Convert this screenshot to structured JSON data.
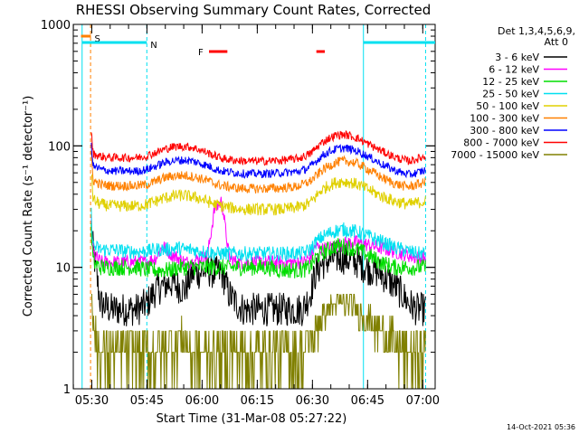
{
  "chart_data": {
    "type": "line",
    "title": "RHESSI Observing Summary Count Rates, Corrected",
    "xlabel": "Start Time (31-Mar-08 05:27:22)",
    "ylabel": "Corrected Count Rate (s⁻¹ detector⁻¹)",
    "ylim": [
      1,
      1000
    ],
    "yscale": "log",
    "xlim_minutes": [
      -2.4,
      96.0
    ],
    "x_tick_labels": [
      {
        "t": 2.63,
        "label": "05:30"
      },
      {
        "t": 17.63,
        "label": "05:45"
      },
      {
        "t": 32.63,
        "label": "06:00"
      },
      {
        "t": 47.63,
        "label": "06:15"
      },
      {
        "t": 62.63,
        "label": "06:30"
      },
      {
        "t": 77.63,
        "label": "06:45"
      },
      {
        "t": 92.63,
        "label": "07:00"
      }
    ],
    "y_tick_labels": [
      {
        "v": 1,
        "label": "1"
      },
      {
        "v": 10,
        "label": "10"
      },
      {
        "v": 100,
        "label": "100"
      },
      {
        "v": 1000,
        "label": "1000"
      }
    ],
    "legend": {
      "header_lines": [
        "Det 1,3,4,5,6,9,",
        "Att 0"
      ],
      "placement": "right"
    },
    "timestamp": "14-Oct-2021 05:36",
    "flags": [
      {
        "label": "S",
        "color": "#ff8000",
        "segments": [
          [
            -0.3,
            2.4
          ]
        ]
      },
      {
        "label": "N",
        "color": "#00e0f0",
        "segments": [
          [
            0.0,
            17.6
          ],
          [
            76.5,
            96.0
          ]
        ]
      },
      {
        "label": "F",
        "color": "#ff0000",
        "segments": [
          [
            34.5,
            39.5
          ],
          [
            63.7,
            66.0
          ]
        ]
      }
    ],
    "vlines": [
      {
        "t": 0.0,
        "color": "#00e0f0",
        "style": "solid"
      },
      {
        "t": 2.3,
        "color": "#ff8000",
        "style": "dashed"
      },
      {
        "t": 17.6,
        "color": "#00e0f0",
        "style": "dashed"
      },
      {
        "t": 76.5,
        "color": "#00e0f0",
        "style": "solid"
      },
      {
        "t": 93.4,
        "color": "#00e0f0",
        "style": "dashed"
      }
    ],
    "x": [
      2.5,
      3.0,
      5.0,
      8.0,
      12.0,
      15.0,
      17.6,
      20.0,
      22.0,
      24.0,
      26.0,
      28.0,
      30.0,
      32.0,
      34.0,
      36.0,
      38.0,
      40.0,
      42.0,
      44.0,
      46.0,
      50.0,
      54.0,
      58.0,
      60.0,
      62.0,
      63.5,
      65.0,
      67.0,
      69.0,
      71.0,
      73.0,
      75.0,
      77.0,
      79.0,
      81.0,
      83.0,
      85.0,
      87.0,
      89.0,
      91.0,
      93.4
    ],
    "series": [
      {
        "name": "3 - 6 keV",
        "color": "#000000",
        "values": [
          20,
          14,
          5,
          4.5,
          4.5,
          4.5,
          5,
          6.5,
          7,
          7.5,
          7,
          6.5,
          9,
          9,
          9.5,
          9,
          9,
          6,
          5,
          4.5,
          4.5,
          4.5,
          4.5,
          4.5,
          4.5,
          6,
          9,
          10.5,
          11.5,
          12,
          12,
          11.5,
          11,
          10,
          9.5,
          9,
          8,
          7,
          6,
          5,
          4.5,
          4.5
        ]
      },
      {
        "name": "6 - 12 keV",
        "color": "#ff00ff",
        "values": [
          25,
          13,
          11,
          11,
          11,
          11,
          11,
          12,
          15,
          13,
          12,
          11,
          11,
          12,
          12,
          30,
          35,
          12,
          11,
          11,
          11,
          11,
          11,
          11,
          11,
          12,
          15,
          14,
          14.5,
          15,
          15.5,
          16,
          16,
          15.5,
          15,
          14.5,
          14,
          13.5,
          13,
          12.5,
          12,
          12
        ]
      },
      {
        "name": "12 - 25 keV",
        "color": "#00dd00",
        "values": [
          20,
          11,
          10,
          10,
          10,
          10,
          9.5,
          9.5,
          9.5,
          9.5,
          10,
          10,
          10,
          10,
          10,
          10,
          10,
          10,
          10,
          10,
          10,
          10,
          9.5,
          9.5,
          9.5,
          10,
          12,
          13,
          14,
          15,
          15,
          14.5,
          14,
          13,
          12,
          11,
          10.5,
          10,
          10,
          10,
          10,
          10
        ]
      },
      {
        "name": "25 - 50 keV",
        "color": "#00e0f0",
        "values": [
          28,
          15,
          14,
          14,
          13.5,
          13.5,
          13.5,
          14,
          14,
          14,
          14.5,
          14,
          14,
          13.5,
          13.5,
          13,
          13,
          13,
          13,
          13,
          13,
          13,
          13,
          13,
          13,
          14,
          16,
          17.5,
          19,
          20,
          20.5,
          20,
          19.5,
          18.5,
          17.5,
          16.5,
          15.5,
          14.5,
          14,
          13.5,
          13,
          13
        ]
      },
      {
        "name": "50 - 100 keV",
        "color": "#e0d000",
        "values": [
          60,
          36,
          33,
          32,
          32,
          32,
          33,
          35,
          37,
          38,
          39,
          39,
          38,
          37,
          35,
          33,
          32,
          31,
          30.5,
          30,
          30,
          30,
          30,
          31,
          32,
          34,
          38,
          43,
          47,
          50,
          51,
          50,
          48,
          45,
          42,
          39,
          37,
          35,
          34,
          33,
          34,
          35
        ]
      },
      {
        "name": "100 - 300 keV",
        "color": "#ff8000",
        "values": [
          85,
          52,
          48,
          47,
          47,
          47,
          48,
          51,
          54,
          56,
          57,
          57,
          56,
          54,
          52,
          49,
          47,
          46,
          45,
          44.5,
          44.5,
          44.5,
          45,
          46,
          48,
          51,
          56,
          62,
          68,
          73,
          75,
          74,
          71,
          66,
          61,
          56,
          52,
          49,
          47,
          46,
          48,
          50
        ]
      },
      {
        "name": "300 - 800 keV",
        "color": "#0000ff",
        "values": [
          105,
          68,
          64,
          62,
          62,
          62,
          64,
          68,
          72,
          75,
          76,
          76,
          75,
          72,
          69,
          65,
          62,
          61,
          60,
          59,
          59,
          59,
          60,
          61,
          63,
          67,
          74,
          82,
          89,
          94,
          96,
          94,
          90,
          84,
          78,
          72,
          67,
          63,
          60,
          58,
          60,
          63
        ]
      },
      {
        "name": "800 - 7000 keV",
        "color": "#ff0000",
        "values": [
          130,
          86,
          82,
          80,
          80,
          80,
          83,
          88,
          93,
          97,
          99,
          99,
          97,
          93,
          88,
          83,
          79,
          77,
          76,
          75,
          75,
          75,
          76,
          78,
          81,
          86,
          95,
          105,
          115,
          122,
          124,
          121,
          115,
          107,
          99,
          92,
          86,
          81,
          77,
          75,
          78,
          82
        ]
      },
      {
        "name": "7000 - 15000 keV",
        "color": "#808000",
        "values": [
          10,
          3,
          2,
          2,
          2,
          2,
          2,
          2,
          2,
          2.5,
          2.5,
          2.5,
          2,
          2,
          2,
          2,
          2,
          2,
          2,
          2,
          2,
          2,
          2,
          2,
          2,
          2.5,
          3,
          4,
          4.5,
          5,
          5,
          5,
          4.5,
          4,
          3.5,
          3,
          3,
          2.5,
          2,
          2,
          2,
          2
        ]
      }
    ]
  }
}
